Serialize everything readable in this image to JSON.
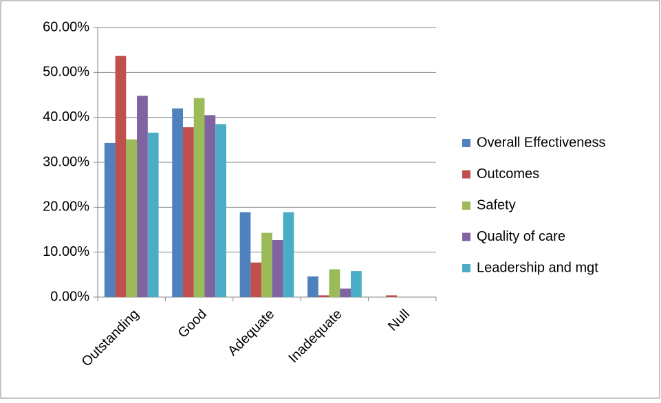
{
  "chart_data": {
    "type": "bar",
    "categories": [
      "Outstanding",
      "Good",
      "Adequate",
      "Inadequate",
      "Null"
    ],
    "series": [
      {
        "name": "Overall Effectiveness",
        "color": "#4f81bd",
        "values": [
          34.3,
          42.0,
          18.9,
          4.6,
          0
        ]
      },
      {
        "name": "Outcomes",
        "color": "#c0504d",
        "values": [
          53.7,
          37.8,
          7.7,
          0.4,
          0.4
        ]
      },
      {
        "name": "Safety",
        "color": "#9bbb59",
        "values": [
          35.1,
          44.3,
          14.3,
          6.2,
          0
        ]
      },
      {
        "name": "Quality of care",
        "color": "#8064a2",
        "values": [
          44.8,
          40.5,
          12.7,
          1.9,
          0
        ]
      },
      {
        "name": "Leadership and mgt",
        "color": "#4bacc6",
        "values": [
          36.6,
          38.5,
          18.9,
          5.8,
          0
        ]
      }
    ],
    "ylim": [
      0,
      60
    ],
    "yticks": [
      {
        "value": 0,
        "label": "0.00%"
      },
      {
        "value": 10,
        "label": "10.00%"
      },
      {
        "value": 20,
        "label": "20.00%"
      },
      {
        "value": 30,
        "label": "30.00%"
      },
      {
        "value": 40,
        "label": "40.00%"
      },
      {
        "value": 50,
        "label": "50.00%"
      },
      {
        "value": 60,
        "label": "60.00%"
      }
    ],
    "grid": true,
    "legend": "right"
  }
}
